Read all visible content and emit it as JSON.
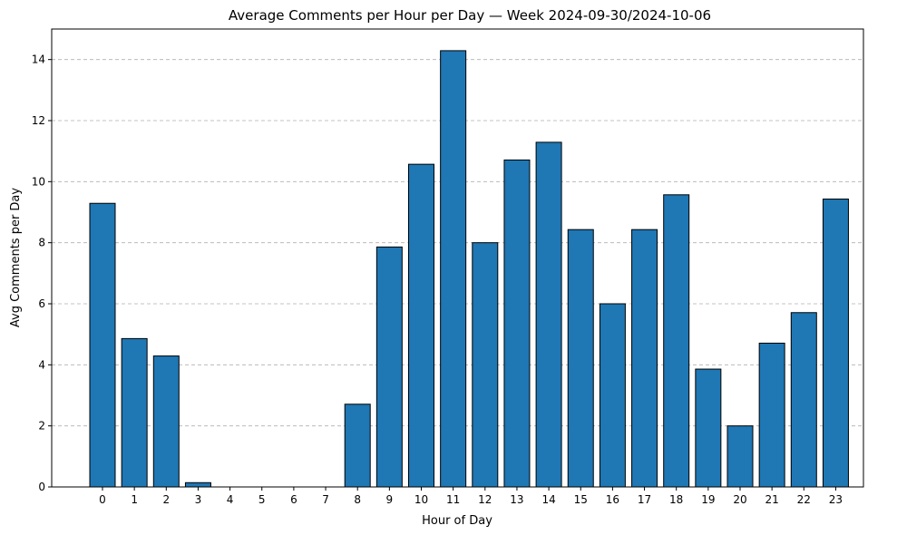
{
  "chart_data": {
    "type": "bar",
    "title": "Average Comments per Hour per Day — Week 2024-09-30/2024-10-06",
    "xlabel": "Hour of Day",
    "ylabel": "Avg Comments per Day",
    "categories": [
      "0",
      "1",
      "2",
      "3",
      "4",
      "5",
      "6",
      "7",
      "8",
      "9",
      "10",
      "11",
      "12",
      "13",
      "14",
      "15",
      "16",
      "17",
      "18",
      "19",
      "20",
      "21",
      "22",
      "23"
    ],
    "values": [
      9.29,
      4.86,
      4.29,
      0.14,
      0,
      0,
      0,
      0,
      2.71,
      7.86,
      10.57,
      14.29,
      8.0,
      10.71,
      11.29,
      8.43,
      6.0,
      8.43,
      9.57,
      3.86,
      2.0,
      4.71,
      5.71,
      9.43
    ],
    "ylim": [
      0,
      15
    ],
    "yticks": [
      "0",
      "2",
      "4",
      "6",
      "8",
      "10",
      "12",
      "14"
    ],
    "grid": "y-dashed",
    "colors": {
      "bar": "#1f77b4",
      "edge": "#000000",
      "grid": "#b0b0b0"
    }
  }
}
